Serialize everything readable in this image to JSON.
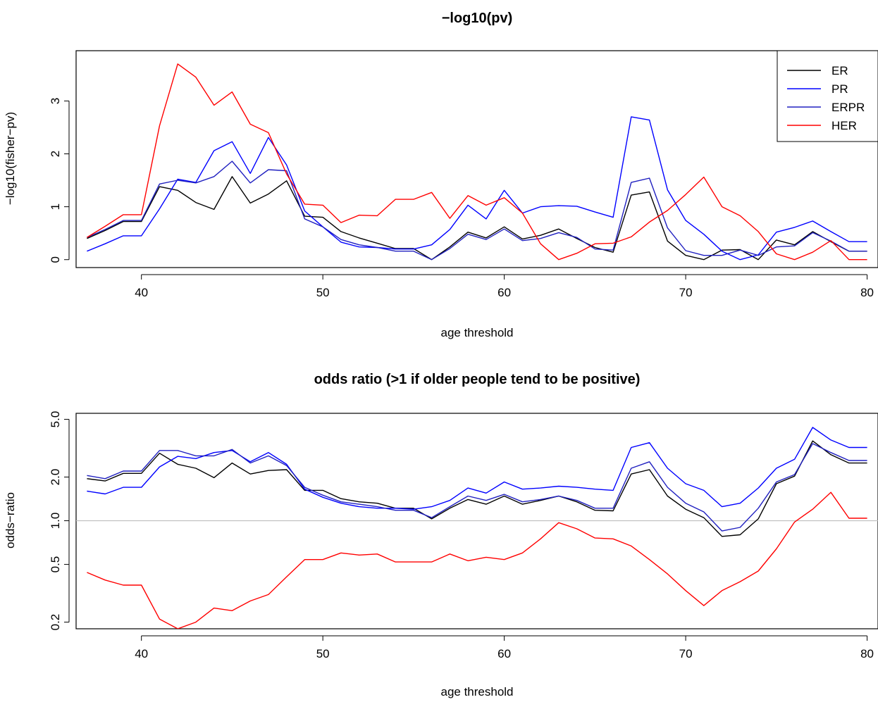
{
  "chart_data": [
    {
      "type": "line",
      "title": "−log10(pv)",
      "xlabel": "age threshold",
      "ylabel": "−log10(fisher−pv)",
      "xlim": [
        36.4,
        80.6
      ],
      "ylim": [
        -0.15,
        3.95
      ],
      "xticks": [
        40,
        50,
        60,
        70,
        80
      ],
      "yticks": [
        0,
        1,
        2,
        3
      ],
      "grid": false,
      "legend_position": "top-right",
      "x": [
        37,
        38,
        39,
        40,
        41,
        42,
        43,
        44,
        45,
        46,
        47,
        48,
        49,
        50,
        51,
        52,
        53,
        54,
        55,
        56,
        57,
        58,
        59,
        60,
        61,
        62,
        63,
        64,
        65,
        66,
        67,
        68,
        69,
        70,
        71,
        72,
        73,
        74,
        75,
        76,
        77,
        78,
        79,
        80
      ],
      "series": [
        {
          "name": "ER",
          "color": "#000000",
          "values": [
            0.4,
            0.55,
            0.72,
            0.72,
            1.38,
            1.31,
            1.08,
            0.95,
            1.57,
            1.07,
            1.24,
            1.49,
            0.82,
            0.8,
            0.53,
            0.41,
            0.31,
            0.21,
            0.21,
            0.0,
            0.24,
            0.52,
            0.41,
            0.62,
            0.39,
            0.46,
            0.58,
            0.4,
            0.23,
            0.14,
            1.22,
            1.28,
            0.35,
            0.08,
            0.0,
            0.18,
            0.19,
            0.0,
            0.37,
            0.28,
            0.53,
            0.34,
            0.16,
            0.16
          ]
        },
        {
          "name": "PR",
          "color": "#0000ff",
          "values": [
            0.16,
            0.3,
            0.45,
            0.45,
            0.96,
            1.52,
            1.46,
            2.06,
            2.23,
            1.63,
            2.31,
            1.79,
            0.92,
            0.62,
            0.33,
            0.24,
            0.23,
            0.2,
            0.2,
            0.28,
            0.57,
            1.03,
            0.77,
            1.31,
            0.88,
            1.0,
            1.02,
            1.01,
            0.9,
            0.8,
            2.7,
            2.64,
            1.32,
            0.74,
            0.48,
            0.16,
            0.0,
            0.09,
            0.52,
            0.61,
            0.73,
            0.53,
            0.34,
            0.34
          ]
        },
        {
          "name": "ERPR",
          "color": "#2020c0",
          "values": [
            0.42,
            0.57,
            0.74,
            0.74,
            1.43,
            1.5,
            1.45,
            1.57,
            1.86,
            1.45,
            1.7,
            1.68,
            0.77,
            0.62,
            0.38,
            0.28,
            0.23,
            0.16,
            0.16,
            0.0,
            0.21,
            0.48,
            0.38,
            0.58,
            0.36,
            0.4,
            0.51,
            0.42,
            0.2,
            0.18,
            1.46,
            1.54,
            0.6,
            0.17,
            0.08,
            0.08,
            0.18,
            0.08,
            0.24,
            0.26,
            0.51,
            0.35,
            0.16,
            0.16
          ]
        },
        {
          "name": "HER",
          "color": "#ff0000",
          "values": [
            0.42,
            0.63,
            0.85,
            0.85,
            2.53,
            3.7,
            3.45,
            2.92,
            3.17,
            2.56,
            2.4,
            1.62,
            1.05,
            1.03,
            0.7,
            0.84,
            0.83,
            1.14,
            1.14,
            1.27,
            0.78,
            1.21,
            1.03,
            1.17,
            0.88,
            0.3,
            0.0,
            0.12,
            0.3,
            0.31,
            0.43,
            0.71,
            0.93,
            1.23,
            1.56,
            1.0,
            0.83,
            0.53,
            0.11,
            0.0,
            0.14,
            0.36,
            0.0,
            0.0
          ]
        }
      ]
    },
    {
      "type": "line",
      "title": "odds ratio (>1 if older people tend to be positive)",
      "xlabel": "age threshold",
      "ylabel": "odds−ratio",
      "yscale": "log",
      "xlim": [
        36.4,
        80.6
      ],
      "ylim": [
        0.18,
        5.5
      ],
      "xticks": [
        40,
        50,
        60,
        70,
        80
      ],
      "yticks": [
        0.2,
        0.5,
        1.0,
        2.0,
        5.0
      ],
      "ytick_labels": [
        "0.2",
        "0.5",
        "1.0",
        "2.0",
        "5.0"
      ],
      "reference_line": 1.0,
      "reference_color": "#bebebe",
      "grid": false,
      "x": [
        37,
        38,
        39,
        40,
        41,
        42,
        43,
        44,
        45,
        46,
        47,
        48,
        49,
        50,
        51,
        52,
        53,
        54,
        55,
        56,
        57,
        58,
        59,
        60,
        61,
        62,
        63,
        64,
        65,
        66,
        67,
        68,
        69,
        70,
        71,
        72,
        73,
        74,
        75,
        76,
        77,
        78,
        79,
        80
      ],
      "series": [
        {
          "color": "#000000",
          "values": [
            1.95,
            1.88,
            2.12,
            2.12,
            2.92,
            2.45,
            2.3,
            1.98,
            2.5,
            2.1,
            2.22,
            2.25,
            1.62,
            1.62,
            1.42,
            1.35,
            1.32,
            1.22,
            1.22,
            1.03,
            1.22,
            1.4,
            1.3,
            1.48,
            1.3,
            1.38,
            1.48,
            1.35,
            1.18,
            1.17,
            2.1,
            2.25,
            1.48,
            1.2,
            1.05,
            0.78,
            0.8,
            1.03,
            1.8,
            2.03,
            3.55,
            2.85,
            2.5,
            2.5
          ]
        },
        {
          "color": "#0000ff",
          "values": [
            1.6,
            1.53,
            1.7,
            1.7,
            2.35,
            2.78,
            2.68,
            2.95,
            3.05,
            2.55,
            2.95,
            2.45,
            1.65,
            1.45,
            1.32,
            1.25,
            1.22,
            1.22,
            1.2,
            1.25,
            1.38,
            1.68,
            1.55,
            1.85,
            1.65,
            1.68,
            1.73,
            1.7,
            1.65,
            1.62,
            3.2,
            3.45,
            2.3,
            1.8,
            1.62,
            1.25,
            1.32,
            1.68,
            2.3,
            2.65,
            4.4,
            3.6,
            3.2,
            3.2
          ]
        },
        {
          "color": "#2020c0",
          "values": [
            2.05,
            1.95,
            2.2,
            2.2,
            3.05,
            3.05,
            2.8,
            2.8,
            3.1,
            2.5,
            2.8,
            2.4,
            1.7,
            1.5,
            1.35,
            1.3,
            1.25,
            1.18,
            1.18,
            1.05,
            1.25,
            1.48,
            1.38,
            1.52,
            1.35,
            1.4,
            1.48,
            1.38,
            1.22,
            1.22,
            2.3,
            2.55,
            1.7,
            1.32,
            1.15,
            0.85,
            0.9,
            1.22,
            1.85,
            2.08,
            3.4,
            2.95,
            2.6,
            2.6
          ]
        },
        {
          "color": "#ff0000",
          "values": [
            0.44,
            0.39,
            0.36,
            0.36,
            0.21,
            0.18,
            0.2,
            0.25,
            0.24,
            0.28,
            0.31,
            0.41,
            0.54,
            0.54,
            0.6,
            0.58,
            0.59,
            0.52,
            0.52,
            0.52,
            0.59,
            0.53,
            0.56,
            0.54,
            0.6,
            0.75,
            0.97,
            0.88,
            0.76,
            0.75,
            0.67,
            0.54,
            0.43,
            0.33,
            0.26,
            0.33,
            0.38,
            0.45,
            0.64,
            0.98,
            1.2,
            1.57,
            1.04,
            1.04
          ]
        }
      ]
    }
  ]
}
